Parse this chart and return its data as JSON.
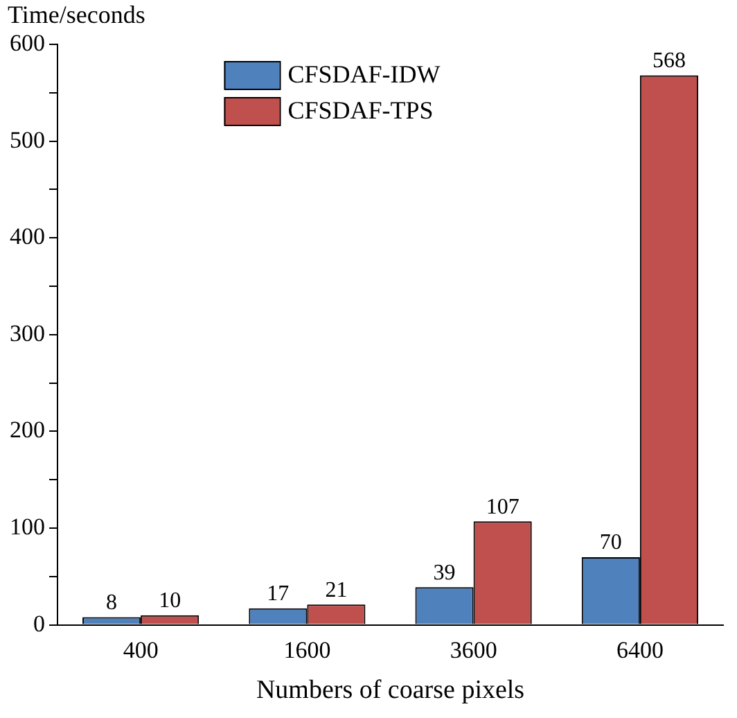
{
  "chart_data": {
    "type": "bar",
    "xlabel": "Numbers of coarse pixels",
    "ylabel": "Time/seconds",
    "categories": [
      "400",
      "1600",
      "3600",
      "6400"
    ],
    "series": [
      {
        "name": "CFSDAF-IDW",
        "color": "#4f81bd",
        "values": [
          8,
          17,
          39,
          70
        ]
      },
      {
        "name": "CFSDAF-TPS",
        "color": "#c0504d",
        "values": [
          10,
          21,
          107,
          568
        ]
      }
    ],
    "ylim": [
      0,
      600
    ],
    "yticks": [
      0,
      {
        "value": 50,
        "label": null
      },
      100,
      {
        "value": 150,
        "label": null
      },
      200,
      {
        "value": 250,
        "label": null
      },
      300,
      {
        "value": 350,
        "label": null
      },
      400,
      {
        "value": 450,
        "label": null
      },
      500,
      {
        "value": 550,
        "label": null
      },
      600
    ],
    "grid": false,
    "legend": "top",
    "data_labels": true
  }
}
